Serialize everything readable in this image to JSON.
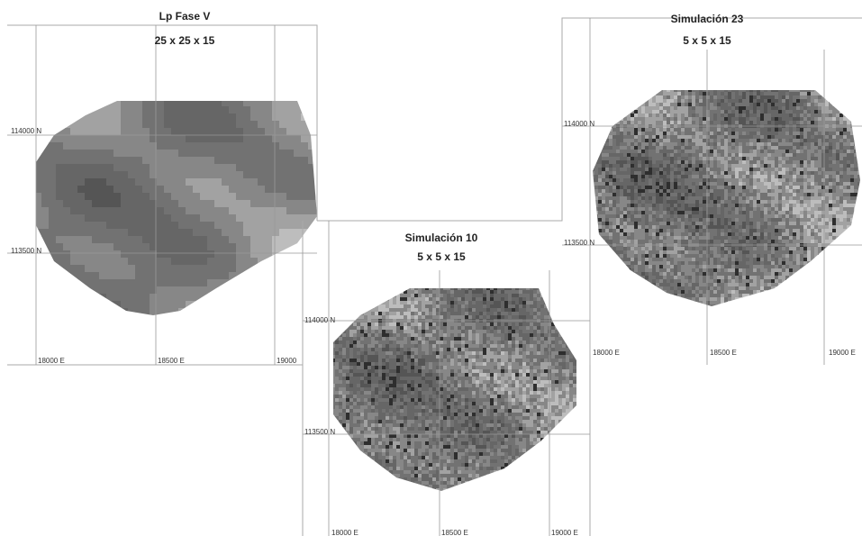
{
  "panels": [
    {
      "title": "Lp Fase V",
      "subtitle": "25 x 25 x 15",
      "northing_labels": [
        "114000 N",
        "113500 N"
      ],
      "easting_labels": [
        "18000 E",
        "18500 E",
        "19000"
      ]
    },
    {
      "title": "Simulación 10",
      "subtitle": "5 x 5 x 15",
      "northing_labels": [
        "114000 N",
        "113500 N"
      ],
      "easting_labels": [
        "18000 E",
        "18500 E",
        "19000 E"
      ]
    },
    {
      "title": "Simulación 23",
      "subtitle": "5 x 5 x 15",
      "northing_labels": [
        "114000 N",
        "113500 N"
      ],
      "easting_labels": [
        "18000 E",
        "18500 E",
        "19000 E"
      ]
    }
  ]
}
